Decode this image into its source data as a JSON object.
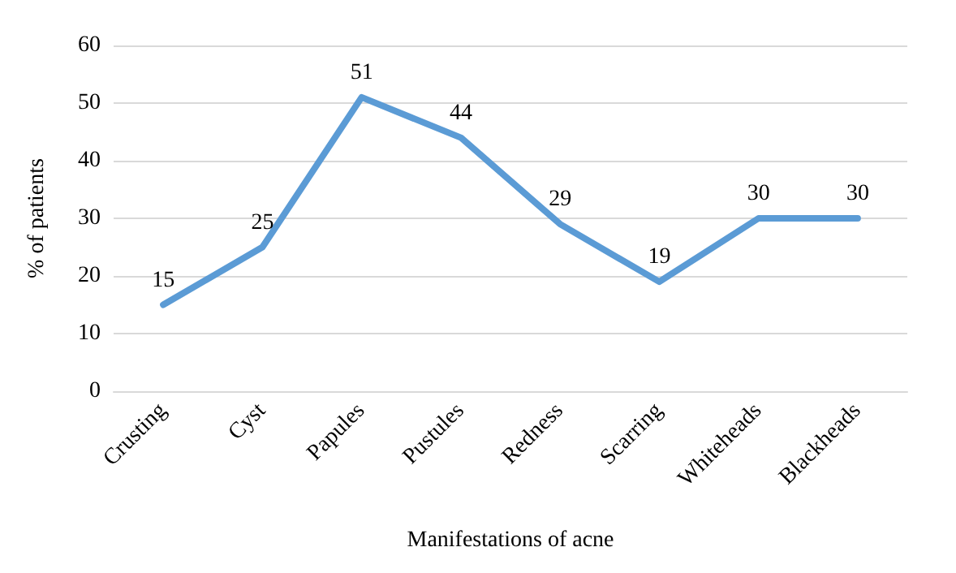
{
  "chart_data": {
    "type": "line",
    "xlabel": "Manifestations of acne",
    "ylabel": "% of patients",
    "categories": [
      "Crusting",
      "Cyst",
      "Papules",
      "Pustules",
      "Redness",
      "Scarring",
      "Whiteheads",
      "Blackheads"
    ],
    "values": [
      15,
      25,
      51,
      44,
      29,
      19,
      30,
      30
    ],
    "color": "#5b9bd5",
    "ylim": [
      0,
      60
    ],
    "yticks": [
      0,
      10,
      20,
      30,
      40,
      50,
      60
    ],
    "grid": "y",
    "data_labels": true,
    "marker": "none",
    "line_style": "solid"
  }
}
